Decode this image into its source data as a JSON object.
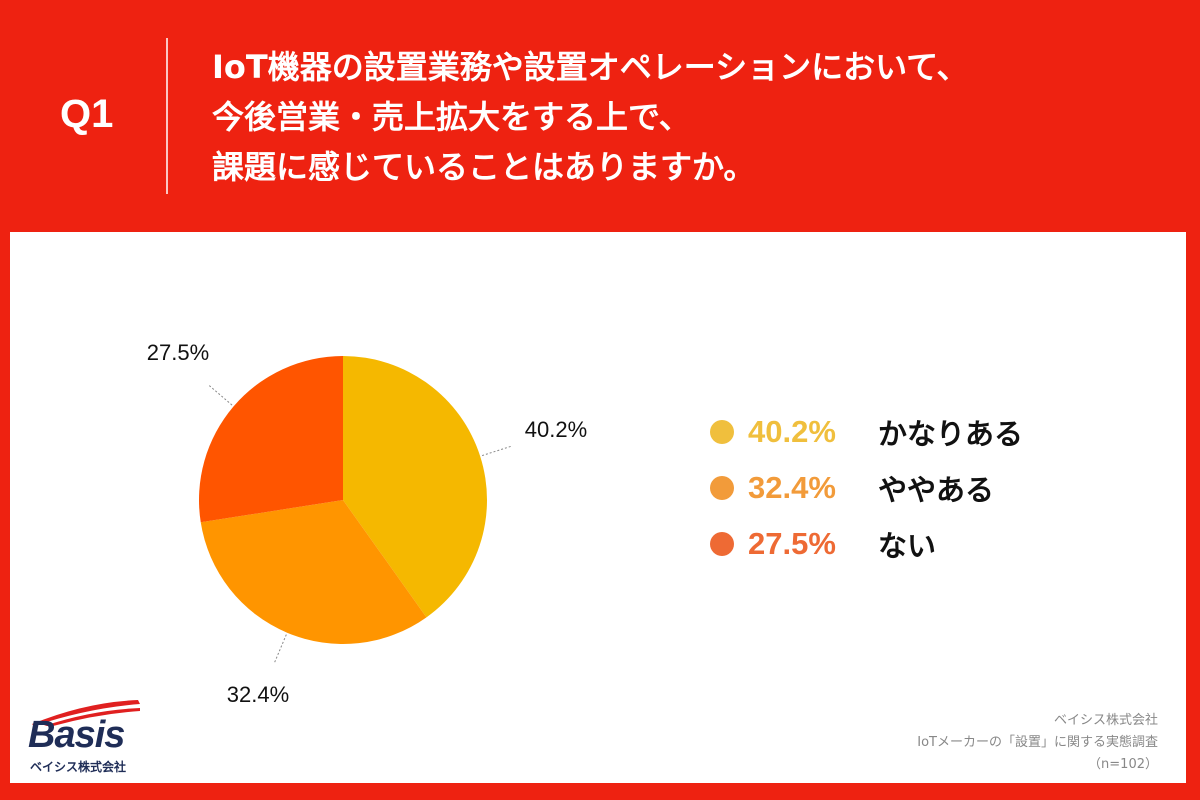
{
  "header": {
    "qnum": "Q1",
    "lines": [
      "IoT機器の設置業務や設置オペレーションにおいて、",
      "今後営業・売上拡大をする上で、",
      "課題に感じていることはありますか。"
    ]
  },
  "colors": {
    "background": "#ee2211",
    "slice1": "#f5b800",
    "slice2": "#ff9500",
    "slice3": "#ff5500",
    "legend1": "#f0bf3d",
    "legend2": "#f29b3a",
    "legend3": "#ee6a34"
  },
  "chart_data": {
    "type": "pie",
    "categories": [
      "かなりある",
      "ややある",
      "ない"
    ],
    "values": [
      40.2,
      32.4,
      27.5
    ],
    "data_labels": [
      "40.2%",
      "32.4%",
      "27.5%"
    ]
  },
  "legend": [
    {
      "value": "40.2%",
      "label": "かなりある"
    },
    {
      "value": "32.4%",
      "label": "ややある"
    },
    {
      "value": "27.5%",
      "label": "ない"
    }
  ],
  "logo": {
    "word": "Basis",
    "company": "ベイシス株式会社"
  },
  "source": {
    "company": "ベイシス株式会社",
    "survey": "IoTメーカーの「設置」に関する実態調査",
    "sample": "（n=102）"
  }
}
